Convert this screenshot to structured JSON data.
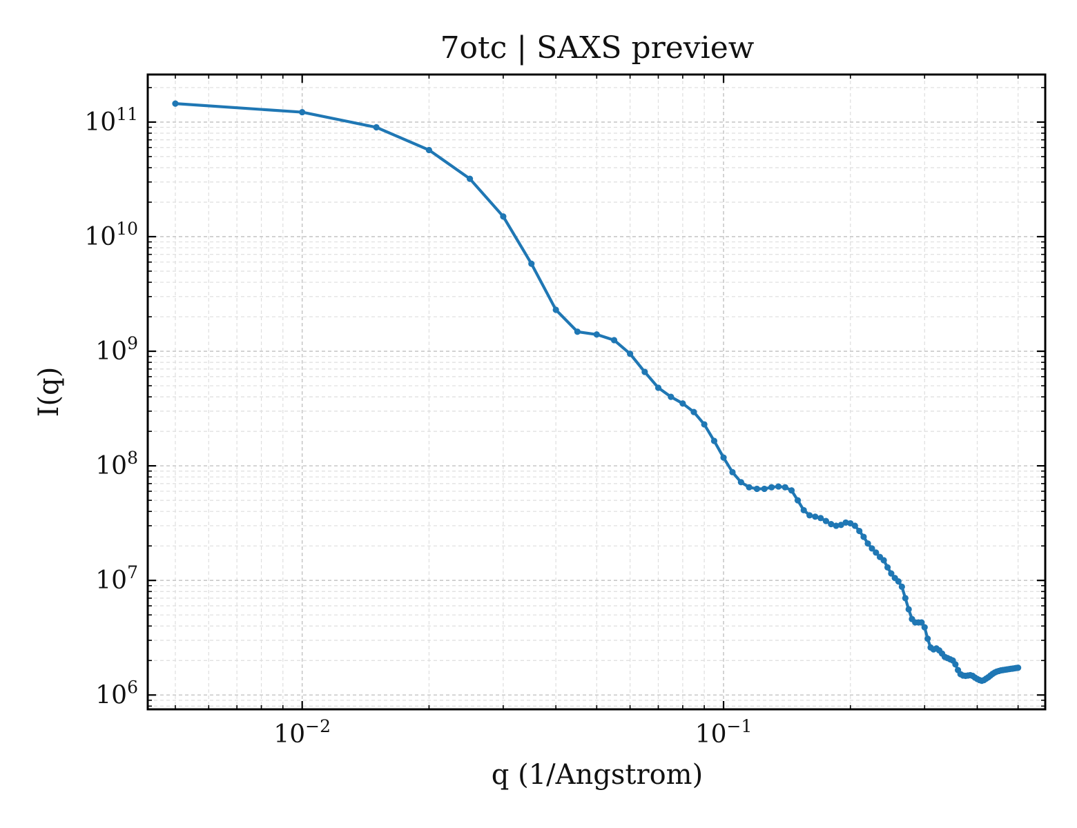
{
  "chart_data": {
    "type": "line",
    "title": "7otc | SAXS preview",
    "xlabel": "q (1/Angstrom)",
    "ylabel": "I(q)",
    "xscale": "log",
    "yscale": "log",
    "xlim": [
      0.0043,
      0.58
    ],
    "ylim": [
      750000,
      260000000000
    ],
    "grid": true,
    "x_ticks": [
      {
        "value": 0.01,
        "base": "10",
        "exp": "−2"
      },
      {
        "value": 0.1,
        "base": "10",
        "exp": "−1"
      }
    ],
    "y_ticks": [
      {
        "value": 1000000,
        "base": "10",
        "exp": "6"
      },
      {
        "value": 10000000,
        "base": "10",
        "exp": "7"
      },
      {
        "value": 100000000,
        "base": "10",
        "exp": "8"
      },
      {
        "value": 1000000000,
        "base": "10",
        "exp": "9"
      },
      {
        "value": 10000000000,
        "base": "10",
        "exp": "10"
      },
      {
        "value": 100000000000,
        "base": "10",
        "exp": "11"
      }
    ],
    "series": [
      {
        "color": "#1f77b4",
        "marker": "dot",
        "x": [
          0.005,
          0.01,
          0.015,
          0.02,
          0.025,
          0.03,
          0.035,
          0.04,
          0.045,
          0.05,
          0.055,
          0.06,
          0.065,
          0.07,
          0.075,
          0.08,
          0.085,
          0.09,
          0.095,
          0.1,
          0.105,
          0.11,
          0.115,
          0.12,
          0.125,
          0.13,
          0.135,
          0.14,
          0.145,
          0.15,
          0.155,
          0.16,
          0.165,
          0.17,
          0.175,
          0.18,
          0.185,
          0.19,
          0.195,
          0.2,
          0.205,
          0.21,
          0.215,
          0.22,
          0.225,
          0.23,
          0.235,
          0.24,
          0.245,
          0.25,
          0.255,
          0.26,
          0.265,
          0.27,
          0.275,
          0.28,
          0.285,
          0.29,
          0.295,
          0.3,
          0.305,
          0.31,
          0.315,
          0.32,
          0.325,
          0.33,
          0.335,
          0.34,
          0.345,
          0.35,
          0.355,
          0.36,
          0.365,
          0.37,
          0.375,
          0.38,
          0.385,
          0.39,
          0.395,
          0.4,
          0.405,
          0.41,
          0.415,
          0.42,
          0.425,
          0.43,
          0.435,
          0.44,
          0.445,
          0.45,
          0.455,
          0.46,
          0.465,
          0.47,
          0.475,
          0.48,
          0.485,
          0.49,
          0.495,
          0.5
        ],
        "y": [
          145000000000,
          122000000000,
          90000000000,
          57000000000,
          32000000000,
          15000000000,
          5800000000,
          2300000000,
          1480000000,
          1400000000,
          1250000000,
          950000000,
          660000000,
          480000000,
          400000000,
          350000000,
          295000000,
          230000000,
          165000000,
          118000000,
          88000000,
          72000000,
          65000000,
          63000000,
          63000000,
          65000000,
          66000000,
          65000000,
          61000000,
          50000000,
          41000000,
          37000000,
          36000000,
          35000000,
          33000000,
          31000000,
          30000000,
          30500000,
          32000000,
          31500000,
          30000000,
          27000000,
          24000000,
          21000000,
          19000000,
          17500000,
          16000000,
          15000000,
          13000000,
          11500000,
          10500000,
          9800000,
          8800000,
          7000000,
          5600000,
          4600000,
          4300000,
          4300000,
          4300000,
          3900000,
          3100000,
          2600000,
          2500000,
          2550000,
          2450000,
          2300000,
          2150000,
          2100000,
          2050000,
          2000000,
          1850000,
          1650000,
          1520000,
          1480000,
          1470000,
          1480000,
          1490000,
          1470000,
          1420000,
          1380000,
          1350000,
          1330000,
          1350000,
          1390000,
          1430000,
          1480000,
          1530000,
          1570000,
          1600000,
          1620000,
          1640000,
          1650000,
          1660000,
          1670000,
          1680000,
          1690000,
          1700000,
          1710000,
          1720000,
          1730000
        ]
      }
    ]
  }
}
